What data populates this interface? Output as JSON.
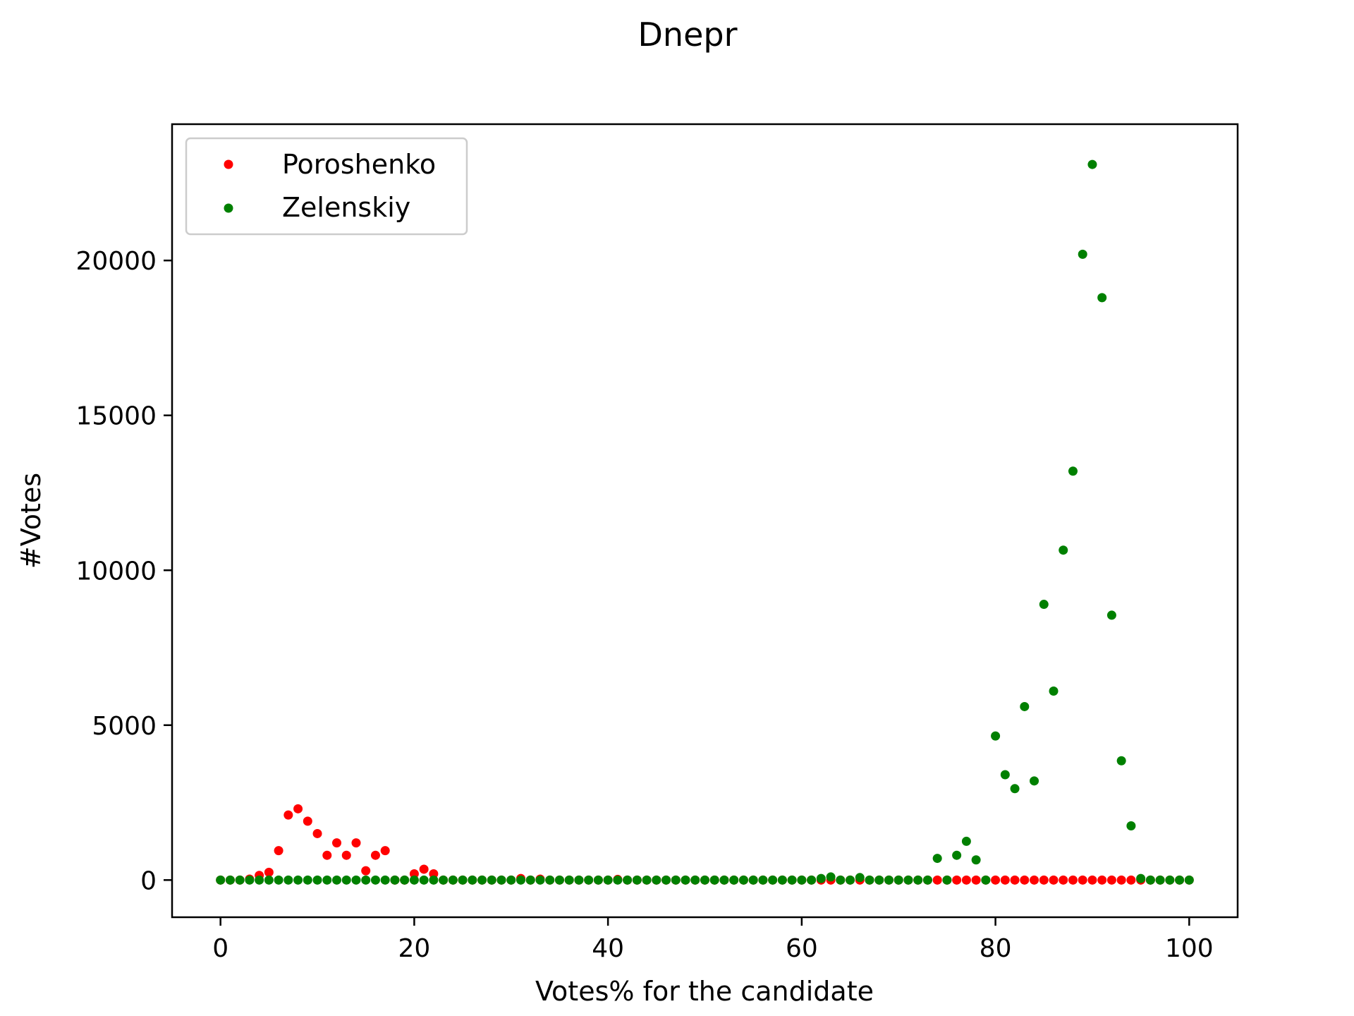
{
  "chart_data": {
    "type": "scatter",
    "title": "Dnepr",
    "xlabel": "Votes% for the candidate",
    "ylabel": "#Votes",
    "xlim": [
      -5,
      105
    ],
    "ylim": [
      -1200,
      24400
    ],
    "xticks": [
      "0",
      "20",
      "40",
      "60",
      "80",
      "100"
    ],
    "yticks": [
      "0",
      "5000",
      "10000",
      "15000",
      "20000"
    ],
    "grid": false,
    "legend_position": "top-left",
    "series": [
      {
        "name": "Poroshenko",
        "color": "#ff0000",
        "x": [
          0,
          1,
          2,
          3,
          4,
          5,
          6,
          7,
          8,
          9,
          10,
          11,
          12,
          13,
          14,
          15,
          16,
          17,
          18,
          19,
          20,
          21,
          22,
          23,
          24,
          25,
          26,
          27,
          28,
          29,
          30,
          31,
          32,
          33,
          34,
          35,
          36,
          37,
          38,
          39,
          40,
          41,
          42,
          43,
          44,
          45,
          46,
          47,
          48,
          49,
          50,
          51,
          52,
          53,
          54,
          55,
          56,
          57,
          58,
          59,
          60,
          61,
          62,
          63,
          64,
          65,
          66,
          67,
          68,
          69,
          70,
          71,
          72,
          73,
          74,
          75,
          76,
          77,
          78,
          79,
          80,
          81,
          82,
          83,
          84,
          85,
          86,
          87,
          88,
          89,
          90,
          91,
          92,
          93,
          94,
          95,
          96,
          97,
          98,
          99,
          100
        ],
        "y": [
          0,
          0,
          0,
          30,
          150,
          250,
          950,
          2100,
          2300,
          1900,
          1500,
          800,
          1200,
          800,
          1200,
          300,
          800,
          950,
          0,
          0,
          200,
          350,
          200,
          0,
          0,
          0,
          0,
          0,
          0,
          0,
          0,
          50,
          0,
          30,
          0,
          0,
          0,
          0,
          0,
          0,
          0,
          20,
          0,
          0,
          0,
          0,
          0,
          0,
          0,
          0,
          0,
          0,
          0,
          0,
          0,
          0,
          0,
          0,
          0,
          0,
          0,
          0,
          0,
          0,
          0,
          0,
          0,
          0,
          0,
          0,
          0,
          0,
          0,
          0,
          0,
          0,
          0,
          0,
          0,
          0,
          0,
          0,
          0,
          0,
          0,
          0,
          0,
          0,
          0,
          0,
          0,
          0,
          0,
          0,
          0,
          0,
          0,
          0,
          0,
          0,
          0
        ]
      },
      {
        "name": "Zelenskiy",
        "color": "#008000",
        "x": [
          0,
          1,
          2,
          3,
          4,
          5,
          6,
          7,
          8,
          9,
          10,
          11,
          12,
          13,
          14,
          15,
          16,
          17,
          18,
          19,
          20,
          21,
          22,
          23,
          24,
          25,
          26,
          27,
          28,
          29,
          30,
          31,
          32,
          33,
          34,
          35,
          36,
          37,
          38,
          39,
          40,
          41,
          42,
          43,
          44,
          45,
          46,
          47,
          48,
          49,
          50,
          51,
          52,
          53,
          54,
          55,
          56,
          57,
          58,
          59,
          60,
          61,
          62,
          63,
          64,
          65,
          66,
          67,
          68,
          69,
          70,
          71,
          72,
          73,
          74,
          75,
          76,
          77,
          78,
          79,
          80,
          81,
          82,
          83,
          84,
          85,
          86,
          87,
          88,
          89,
          90,
          91,
          92,
          93,
          94,
          95,
          96,
          97,
          98,
          99,
          100
        ],
        "y": [
          0,
          0,
          0,
          0,
          0,
          0,
          0,
          0,
          0,
          0,
          0,
          0,
          0,
          0,
          0,
          0,
          0,
          0,
          0,
          0,
          0,
          0,
          0,
          0,
          0,
          0,
          0,
          0,
          0,
          0,
          0,
          0,
          0,
          0,
          0,
          0,
          0,
          0,
          0,
          0,
          0,
          0,
          0,
          0,
          0,
          0,
          0,
          0,
          0,
          0,
          0,
          0,
          0,
          0,
          0,
          0,
          0,
          0,
          0,
          0,
          0,
          0,
          50,
          100,
          0,
          0,
          80,
          0,
          0,
          0,
          0,
          0,
          0,
          0,
          700,
          0,
          800,
          1250,
          650,
          0,
          4650,
          3400,
          2950,
          5600,
          3200,
          8900,
          6100,
          10650,
          13200,
          20200,
          23100,
          18800,
          8550,
          3850,
          1750,
          50,
          0,
          0,
          0,
          0,
          0
        ]
      }
    ]
  }
}
